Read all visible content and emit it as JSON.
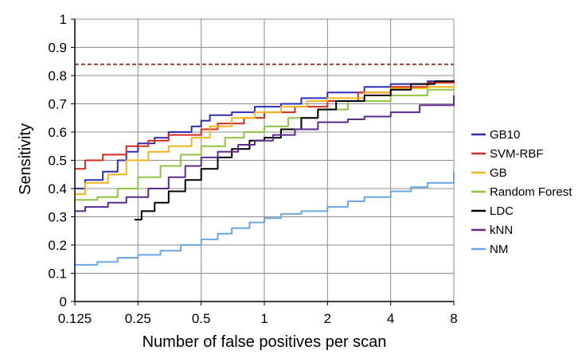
{
  "chart_data": {
    "type": "line",
    "title": "",
    "xlabel": "Number of false positives per scan",
    "ylabel": "Sensitivity",
    "x_scale": "log2",
    "xlim": [
      0.125,
      8
    ],
    "ylim": [
      0,
      1
    ],
    "x_ticks": [
      0.125,
      0.25,
      0.5,
      1,
      2,
      4,
      8
    ],
    "x_tick_labels": [
      "0.125",
      "0.25",
      "0.5",
      "1",
      "2",
      "4",
      "8"
    ],
    "y_ticks": [
      0,
      0.1,
      0.2,
      0.3,
      0.4,
      0.5,
      0.6,
      0.7,
      0.8,
      0.9,
      1
    ],
    "y_tick_labels": [
      "0",
      "0.1",
      "0.2",
      "0.3",
      "0.4",
      "0.5",
      "0.6",
      "0.7",
      "0.8",
      "0.9",
      "1"
    ],
    "grid": true,
    "legend_position": "right",
    "reference_line": {
      "y": 0.84,
      "color": "#8b3a2e",
      "style": "dashed"
    },
    "series": [
      {
        "name": "GB10",
        "color": "#2e2eb5",
        "points": [
          [
            0.125,
            0.4
          ],
          [
            0.14,
            0.43
          ],
          [
            0.17,
            0.46
          ],
          [
            0.2,
            0.5
          ],
          [
            0.22,
            0.53
          ],
          [
            0.25,
            0.56
          ],
          [
            0.3,
            0.58
          ],
          [
            0.35,
            0.6
          ],
          [
            0.45,
            0.62
          ],
          [
            0.5,
            0.64
          ],
          [
            0.55,
            0.66
          ],
          [
            0.7,
            0.67
          ],
          [
            0.9,
            0.69
          ],
          [
            1.2,
            0.7
          ],
          [
            1.5,
            0.72
          ],
          [
            2,
            0.74
          ],
          [
            3,
            0.76
          ],
          [
            4,
            0.77
          ],
          [
            6,
            0.78
          ],
          [
            8,
            0.785
          ]
        ]
      },
      {
        "name": "SVM-RBF",
        "color": "#d62a1e",
        "points": [
          [
            0.125,
            0.47
          ],
          [
            0.14,
            0.5
          ],
          [
            0.17,
            0.52
          ],
          [
            0.22,
            0.55
          ],
          [
            0.28,
            0.57
          ],
          [
            0.35,
            0.59
          ],
          [
            0.5,
            0.61
          ],
          [
            0.6,
            0.63
          ],
          [
            0.8,
            0.65
          ],
          [
            1,
            0.67
          ],
          [
            1.4,
            0.69
          ],
          [
            2,
            0.71
          ],
          [
            2.8,
            0.74
          ],
          [
            4,
            0.76
          ],
          [
            6,
            0.775
          ],
          [
            8,
            0.78
          ]
        ]
      },
      {
        "name": "GB",
        "color": "#f2b51c",
        "points": [
          [
            0.125,
            0.38
          ],
          [
            0.14,
            0.42
          ],
          [
            0.18,
            0.45
          ],
          [
            0.22,
            0.5
          ],
          [
            0.28,
            0.53
          ],
          [
            0.35,
            0.55
          ],
          [
            0.45,
            0.58
          ],
          [
            0.55,
            0.62
          ],
          [
            0.7,
            0.65
          ],
          [
            0.9,
            0.67
          ],
          [
            1.2,
            0.69
          ],
          [
            1.6,
            0.71
          ],
          [
            2,
            0.72
          ],
          [
            3,
            0.74
          ],
          [
            4,
            0.755
          ],
          [
            6,
            0.76
          ],
          [
            8,
            0.765
          ]
        ]
      },
      {
        "name": "Random Forest",
        "color": "#8fc641",
        "points": [
          [
            0.125,
            0.36
          ],
          [
            0.16,
            0.37
          ],
          [
            0.2,
            0.4
          ],
          [
            0.25,
            0.44
          ],
          [
            0.32,
            0.48
          ],
          [
            0.4,
            0.52
          ],
          [
            0.5,
            0.55
          ],
          [
            0.65,
            0.58
          ],
          [
            0.8,
            0.6
          ],
          [
            1,
            0.62
          ],
          [
            1.3,
            0.65
          ],
          [
            1.8,
            0.68
          ],
          [
            2.5,
            0.71
          ],
          [
            4,
            0.73
          ],
          [
            6,
            0.75
          ],
          [
            8,
            0.755
          ]
        ]
      },
      {
        "name": "LDC",
        "color": "#000000",
        "points": [
          [
            0.24,
            0.29
          ],
          [
            0.26,
            0.32
          ],
          [
            0.3,
            0.35
          ],
          [
            0.35,
            0.39
          ],
          [
            0.42,
            0.43
          ],
          [
            0.5,
            0.47
          ],
          [
            0.6,
            0.51
          ],
          [
            0.7,
            0.54
          ],
          [
            0.85,
            0.57
          ],
          [
            1,
            0.58
          ],
          [
            1.2,
            0.61
          ],
          [
            1.5,
            0.65
          ],
          [
            1.8,
            0.68
          ],
          [
            2.2,
            0.71
          ],
          [
            3,
            0.73
          ],
          [
            4,
            0.75
          ],
          [
            5,
            0.77
          ],
          [
            6.5,
            0.78
          ],
          [
            8,
            0.78
          ]
        ]
      },
      {
        "name": "kNN",
        "color": "#5b2a8c",
        "points": [
          [
            0.125,
            0.32
          ],
          [
            0.14,
            0.335
          ],
          [
            0.18,
            0.35
          ],
          [
            0.22,
            0.37
          ],
          [
            0.28,
            0.4
          ],
          [
            0.35,
            0.44
          ],
          [
            0.42,
            0.48
          ],
          [
            0.5,
            0.51
          ],
          [
            0.6,
            0.53
          ],
          [
            0.75,
            0.555
          ],
          [
            0.9,
            0.57
          ],
          [
            1.1,
            0.59
          ],
          [
            1.4,
            0.61
          ],
          [
            1.8,
            0.635
          ],
          [
            2.5,
            0.645
          ],
          [
            3,
            0.655
          ],
          [
            4,
            0.67
          ],
          [
            5.5,
            0.695
          ],
          [
            8,
            0.73
          ]
        ]
      },
      {
        "name": "NM",
        "color": "#6aa6e6",
        "points": [
          [
            0.125,
            0.13
          ],
          [
            0.16,
            0.14
          ],
          [
            0.2,
            0.155
          ],
          [
            0.25,
            0.165
          ],
          [
            0.32,
            0.18
          ],
          [
            0.4,
            0.2
          ],
          [
            0.5,
            0.22
          ],
          [
            0.6,
            0.24
          ],
          [
            0.7,
            0.26
          ],
          [
            0.85,
            0.28
          ],
          [
            1,
            0.295
          ],
          [
            1.2,
            0.31
          ],
          [
            1.5,
            0.32
          ],
          [
            2,
            0.335
          ],
          [
            2.5,
            0.355
          ],
          [
            3,
            0.37
          ],
          [
            4,
            0.39
          ],
          [
            5,
            0.405
          ],
          [
            6,
            0.42
          ],
          [
            8,
            0.46
          ]
        ]
      }
    ]
  }
}
